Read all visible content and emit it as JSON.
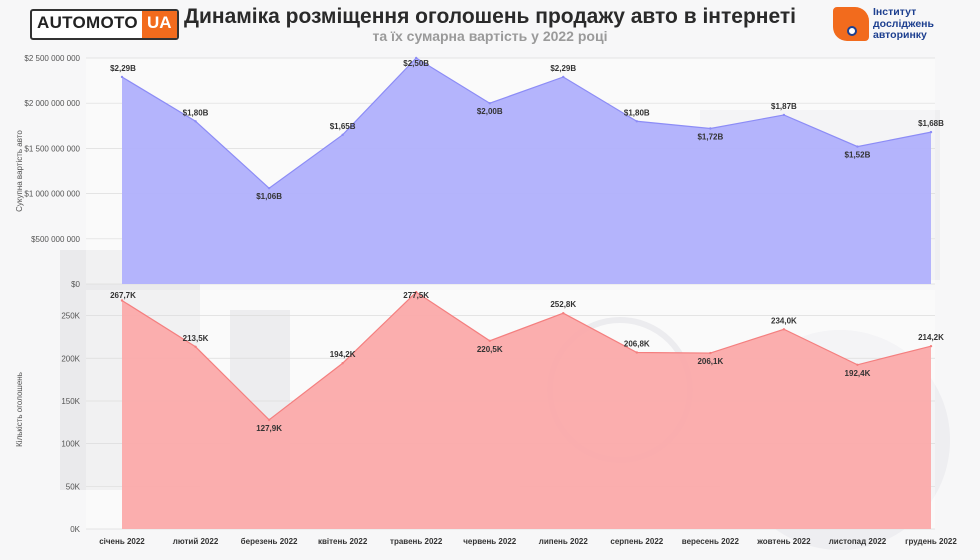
{
  "header": {
    "logo_left_text": "AUTOMOTO",
    "logo_left_suffix": "UA",
    "title": "Динаміка розміщення оголошень продажу авто в інтернеті",
    "subtitle": "та їх сумарна вартість у 2022 році",
    "logo_right_name": [
      "Інститут",
      "досліджень",
      "авторинку"
    ]
  },
  "colors": {
    "accent": "#f26b1d",
    "brand_blue": "#1d3f8f",
    "value_area": "#b0b0fc",
    "value_line": "#8c8cf6",
    "count_area": "#fbaaaa",
    "count_line": "#f47f7f"
  },
  "chart_data": [
    {
      "type": "area",
      "ylabel": "Сукупна вартість авто",
      "ylim": [
        0,
        2500000000
      ],
      "y_ticks": [
        0,
        500000000,
        1000000000,
        1500000000,
        2000000000,
        2500000000
      ],
      "y_tick_labels": [
        "$0",
        "$500 000 000",
        "$1 000 000 000",
        "$1 500 000 000",
        "$2 000 000 000",
        "$2 500 000 000"
      ],
      "grid": true,
      "categories": [
        "січень 2022",
        "лютий 2022",
        "березень 2022",
        "квітень 2022",
        "травень 2022",
        "червень 2022",
        "липень 2022",
        "серпень 2022",
        "вересень 2022",
        "жовтень 2022",
        "листопад 2022",
        "грудень 2022"
      ],
      "values": [
        2290000000,
        1800000000,
        1060000000,
        1650000000,
        2500000000,
        2000000000,
        2290000000,
        1800000000,
        1720000000,
        1870000000,
        1520000000,
        1680000000
      ],
      "data_labels": [
        "$2,29B",
        "$1,80B",
        "$1,06B",
        "$1,65B",
        "$2,50B",
        "$2,00B",
        "$2,29B",
        "$1,80B",
        "$1,72B",
        "$1,87B",
        "$1,52B",
        "$1,68B"
      ]
    },
    {
      "type": "area",
      "ylabel": "Кількість оголошень",
      "ylim": [
        0,
        280000
      ],
      "y_ticks": [
        0,
        50000,
        100000,
        150000,
        200000,
        250000
      ],
      "y_tick_labels": [
        "0K",
        "50K",
        "100K",
        "150K",
        "200K",
        "250K"
      ],
      "grid": true,
      "categories": [
        "січень 2022",
        "лютий 2022",
        "березень 2022",
        "квітень 2022",
        "травень 2022",
        "червень 2022",
        "липень 2022",
        "серпень 2022",
        "вересень 2022",
        "жовтень 2022",
        "листопад 2022",
        "грудень 2022"
      ],
      "values": [
        267700,
        213500,
        127900,
        194200,
        277500,
        220500,
        252800,
        206800,
        206100,
        234000,
        192400,
        214200
      ],
      "data_labels": [
        "267,7K",
        "213,5K",
        "127,9K",
        "194,2K",
        "277,5K",
        "220,5K",
        "252,8K",
        "206,8K",
        "206,1K",
        "234,0K",
        "192,4K",
        "214,2K"
      ]
    }
  ]
}
